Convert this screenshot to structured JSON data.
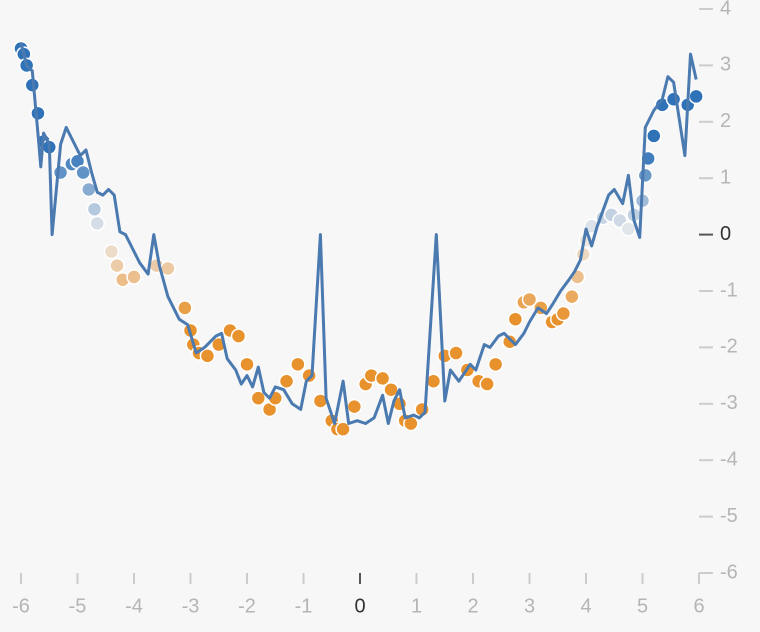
{
  "chart_data": {
    "type": "scatter-line",
    "xlim": [
      -6,
      6
    ],
    "xticks": [
      -6,
      -5,
      -4,
      -3,
      -2,
      -1,
      0,
      1,
      2,
      3,
      4,
      5,
      6
    ],
    "ylim": [
      -6,
      4
    ],
    "yticks": [
      -6,
      -5,
      -4,
      -3,
      -2,
      -1,
      0,
      1,
      2,
      3,
      4
    ],
    "zero_tick_emphasis": true,
    "point_color_scale": {
      "domain": [
        -1.5,
        0,
        1.5
      ],
      "range": [
        "#e8922e",
        "#eeeeee",
        "#2f72b8"
      ]
    },
    "line_color": "#4a7ab0",
    "points": {
      "x": [
        -6,
        -5.95,
        -5.9,
        -5.8,
        -5.7,
        -5.6,
        -5.5,
        -5.3,
        -5.1,
        -5.0,
        -4.9,
        -4.8,
        -4.7,
        -4.65,
        -4.4,
        -4.3,
        -4.2,
        -4.0,
        -3.6,
        -3.4,
        -3.1,
        -3.0,
        -2.95,
        -2.85,
        -2.7,
        -2.5,
        -2.3,
        -2.15,
        -2.0,
        -1.8,
        -1.6,
        -1.5,
        -1.3,
        -1.1,
        -0.9,
        -0.7,
        -0.5,
        -0.4,
        -0.3,
        -0.1,
        0.1,
        0.2,
        0.4,
        0.55,
        0.7,
        0.8,
        0.9,
        1.1,
        1.3,
        1.5,
        1.7,
        1.9,
        2.1,
        2.25,
        2.4,
        2.65,
        2.75,
        2.9,
        3.0,
        3.2,
        3.4,
        3.5,
        3.6,
        3.75,
        3.85,
        3.95,
        4.0,
        4.1,
        4.3,
        4.45,
        4.6,
        4.75,
        4.85,
        5.0,
        5.05,
        5.1,
        5.2,
        5.35,
        5.55,
        5.8,
        5.95
      ],
      "y": [
        3.3,
        3.2,
        3.0,
        2.65,
        2.15,
        1.65,
        1.55,
        1.1,
        1.25,
        1.3,
        1.1,
        0.8,
        0.45,
        0.2,
        -0.3,
        -0.55,
        -0.8,
        -0.75,
        -0.55,
        -0.6,
        -1.3,
        -1.7,
        -1.95,
        -2.1,
        -2.15,
        -1.95,
        -1.7,
        -1.8,
        -2.3,
        -2.9,
        -3.1,
        -2.9,
        -2.6,
        -2.3,
        -2.5,
        -2.95,
        -3.3,
        -3.45,
        -3.45,
        -3.05,
        -2.65,
        -2.5,
        -2.55,
        -2.75,
        -3.0,
        -3.3,
        -3.35,
        -3.1,
        -2.6,
        -2.15,
        -2.1,
        -2.4,
        -2.6,
        -2.65,
        -2.3,
        -1.9,
        -1.5,
        -1.2,
        -1.15,
        -1.3,
        -1.55,
        -1.5,
        -1.4,
        -1.1,
        -0.75,
        -0.35,
        -0.1,
        0.15,
        0.3,
        0.35,
        0.25,
        0.1,
        0.35,
        0.6,
        1.05,
        1.35,
        1.75,
        2.3,
        2.4,
        2.3,
        2.45
      ]
    },
    "line": {
      "x": [
        -6,
        -5.9,
        -5.8,
        -5.7,
        -5.65,
        -5.6,
        -5.5,
        -5.45,
        -5.3,
        -5.2,
        -5.0,
        -4.95,
        -4.85,
        -4.75,
        -4.65,
        -4.55,
        -4.45,
        -4.35,
        -4.25,
        -4.15,
        -4.0,
        -3.9,
        -3.75,
        -3.65,
        -3.55,
        -3.4,
        -3.2,
        -3.05,
        -2.9,
        -2.75,
        -2.55,
        -2.45,
        -2.35,
        -2.2,
        -2.1,
        -2.0,
        -1.9,
        -1.8,
        -1.7,
        -1.6,
        -1.5,
        -1.35,
        -1.2,
        -1.05,
        -0.95,
        -0.85,
        -0.7,
        -0.6,
        -0.45,
        -0.3,
        -0.2,
        -0.05,
        0.1,
        0.25,
        0.4,
        0.5,
        0.6,
        0.7,
        0.8,
        0.95,
        1.05,
        1.15,
        1.35,
        1.5,
        1.6,
        1.75,
        1.85,
        1.95,
        2.05,
        2.2,
        2.3,
        2.45,
        2.55,
        2.75,
        2.9,
        3.0,
        3.15,
        3.3,
        3.4,
        3.55,
        3.7,
        3.8,
        3.9,
        4.0,
        4.1,
        4.2,
        4.4,
        4.5,
        4.65,
        4.75,
        4.85,
        4.95,
        5.05,
        5.2,
        5.35,
        5.45,
        5.55,
        5.75,
        5.85,
        5.95
      ],
      "y": [
        3.4,
        3.0,
        2.9,
        1.8,
        1.2,
        1.8,
        1.6,
        0.0,
        1.6,
        1.9,
        1.5,
        1.4,
        1.5,
        1.1,
        0.75,
        0.7,
        0.8,
        0.7,
        0.05,
        0.0,
        -0.3,
        -0.5,
        -0.7,
        0.0,
        -0.55,
        -1.1,
        -1.5,
        -1.6,
        -2.1,
        -2.0,
        -1.8,
        -1.75,
        -2.2,
        -2.4,
        -2.65,
        -2.5,
        -2.7,
        -2.35,
        -2.8,
        -2.9,
        -2.7,
        -2.75,
        -3.0,
        -3.1,
        -2.6,
        -2.5,
        0.0,
        -2.9,
        -3.35,
        -2.6,
        -3.35,
        -3.3,
        -3.35,
        -3.25,
        -2.85,
        -3.35,
        -2.95,
        -2.75,
        -3.25,
        -3.2,
        -3.25,
        -3.15,
        0.0,
        -2.95,
        -2.4,
        -2.6,
        -2.45,
        -2.3,
        -2.4,
        -1.95,
        -2.0,
        -1.8,
        -1.75,
        -1.95,
        -1.75,
        -1.55,
        -1.3,
        -1.4,
        -1.25,
        -1.0,
        -0.8,
        -0.65,
        -0.45,
        0.1,
        -0.2,
        0.15,
        0.7,
        0.8,
        0.55,
        1.05,
        0.25,
        -0.05,
        1.9,
        2.2,
        2.4,
        2.8,
        2.7,
        1.4,
        3.2,
        2.75
      ]
    }
  }
}
